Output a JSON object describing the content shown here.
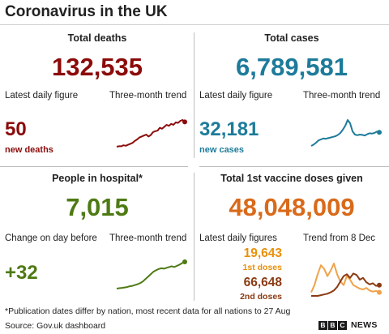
{
  "title": "Coronavirus in the UK",
  "colors": {
    "deaths": "#8b0b0b",
    "cases": "#1d7b9a",
    "hospital": "#4e7a14",
    "vaccine_total": "#d96a1a",
    "vaccine_first": "#e8900a",
    "vaccine_second": "#8a3a12"
  },
  "deaths": {
    "heading": "Total deaths",
    "total": "132,535",
    "daily_label": "Latest daily figure",
    "trend_label": "Three-month trend",
    "daily": "50",
    "daily_sub": "new deaths"
  },
  "cases": {
    "heading": "Total cases",
    "total": "6,789,581",
    "daily_label": "Latest daily figure",
    "trend_label": "Three-month trend",
    "daily": "32,181",
    "daily_sub": "new cases"
  },
  "hospital": {
    "heading": "People in hospital*",
    "total": "7,015",
    "daily_label": "Change on day before",
    "trend_label": "Three-month trend",
    "daily": "+32"
  },
  "vaccine": {
    "heading": "Total 1st vaccine doses given",
    "total": "48,048,009",
    "daily_label": "Latest daily figures",
    "trend_label": "Trend from 8 Dec",
    "first": "19,643",
    "first_sub": "1st doses",
    "second": "66,648",
    "second_sub": "2nd doses"
  },
  "sparklines": {
    "deaths": [
      5,
      6,
      6,
      8,
      7,
      9,
      11,
      13,
      17,
      20,
      24,
      26,
      28,
      30,
      26,
      29,
      35,
      37,
      38,
      44,
      42,
      46,
      50,
      48,
      52,
      50,
      55,
      54,
      58,
      60,
      56
    ],
    "cases": [
      10,
      14,
      20,
      27,
      30,
      33,
      32,
      34,
      36,
      38,
      40,
      44,
      50,
      60,
      72,
      90,
      80,
      55,
      45,
      43,
      45,
      44,
      42,
      46,
      49,
      48,
      50,
      54,
      52
    ],
    "hospital": [
      6,
      7,
      8,
      9,
      10,
      12,
      13,
      15,
      17,
      20,
      24,
      30,
      36,
      42,
      48,
      52,
      55,
      57,
      56,
      58,
      60,
      62,
      60,
      63,
      66,
      70,
      73
    ],
    "vaccine_first": [
      10,
      30,
      60,
      85,
      75,
      55,
      70,
      90,
      60,
      40,
      30,
      55,
      45,
      30,
      25,
      20,
      18,
      22,
      15,
      12,
      14,
      10
    ],
    "vaccine_second": [
      0,
      0,
      0,
      2,
      4,
      6,
      10,
      15,
      25,
      40,
      55,
      60,
      50,
      62,
      58,
      45,
      50,
      38,
      32,
      35,
      28,
      30
    ]
  },
  "footnote": "*Publication dates differ by nation, most recent data for all nations to 27 Aug",
  "source": "Source: Gov.uk dashboard",
  "logo": {
    "b1": "B",
    "b2": "B",
    "c": "C",
    "news": "NEWS"
  }
}
